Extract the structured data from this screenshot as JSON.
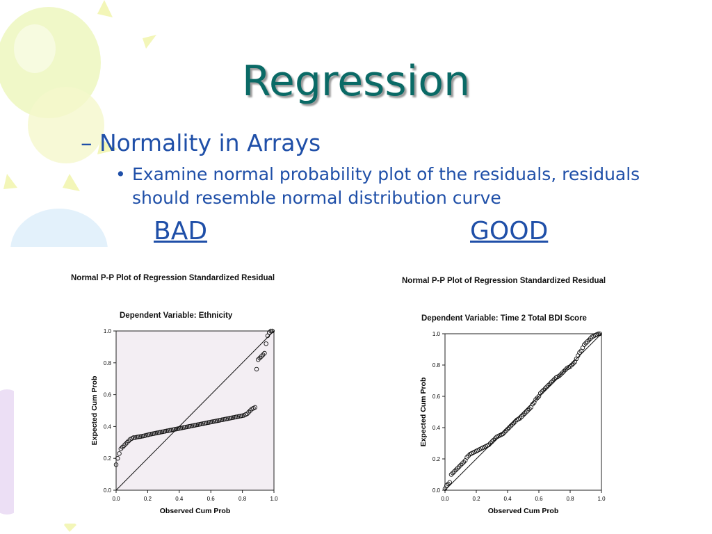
{
  "slide": {
    "title": "Regression",
    "subheading": "– Normality in Arrays",
    "bullet_marker": "•",
    "bullet_text": "Examine normal probability plot of the residuals, residuals should resemble normal distribution curve",
    "label_left": "BAD",
    "label_right": "GOOD",
    "title_color": "#0a6a66",
    "text_color": "#1f4fa8"
  },
  "chart_data": [
    {
      "type": "scatter",
      "title": "Normal P-P Plot of Regression Standardized Residual",
      "subtitle": "Dependent Variable: Ethnicity",
      "xlabel": "Observed Cum Prob",
      "ylabel": "Expected Cum Prob",
      "xlim": [
        0,
        1
      ],
      "ylim": [
        0,
        1
      ],
      "xticks": [
        "0.0",
        "0.2",
        "0.4",
        "0.6",
        "0.8",
        "1.0"
      ],
      "yticks": [
        "0.0",
        "0.2",
        "0.4",
        "0.6",
        "0.8",
        "1.0"
      ],
      "reference_line": true,
      "background": "#f3eef3",
      "points": [
        [
          0.0,
          0.16
        ],
        [
          0.01,
          0.2
        ],
        [
          0.02,
          0.23
        ],
        [
          0.03,
          0.26
        ],
        [
          0.04,
          0.27
        ],
        [
          0.05,
          0.28
        ],
        [
          0.06,
          0.29
        ],
        [
          0.07,
          0.3
        ],
        [
          0.08,
          0.31
        ],
        [
          0.09,
          0.32
        ],
        [
          0.1,
          0.325
        ],
        [
          0.11,
          0.33
        ],
        [
          0.12,
          0.33
        ],
        [
          0.13,
          0.333
        ],
        [
          0.14,
          0.335
        ],
        [
          0.15,
          0.336
        ],
        [
          0.16,
          0.338
        ],
        [
          0.17,
          0.34
        ],
        [
          0.18,
          0.342
        ],
        [
          0.19,
          0.345
        ],
        [
          0.2,
          0.347
        ],
        [
          0.21,
          0.35
        ],
        [
          0.22,
          0.352
        ],
        [
          0.23,
          0.354
        ],
        [
          0.24,
          0.356
        ],
        [
          0.25,
          0.358
        ],
        [
          0.26,
          0.36
        ],
        [
          0.27,
          0.362
        ],
        [
          0.28,
          0.364
        ],
        [
          0.29,
          0.366
        ],
        [
          0.3,
          0.368
        ],
        [
          0.31,
          0.37
        ],
        [
          0.32,
          0.372
        ],
        [
          0.33,
          0.374
        ],
        [
          0.34,
          0.376
        ],
        [
          0.35,
          0.378
        ],
        [
          0.36,
          0.38
        ],
        [
          0.37,
          0.382
        ],
        [
          0.38,
          0.384
        ],
        [
          0.39,
          0.386
        ],
        [
          0.4,
          0.388
        ],
        [
          0.41,
          0.39
        ],
        [
          0.42,
          0.392
        ],
        [
          0.43,
          0.394
        ],
        [
          0.44,
          0.396
        ],
        [
          0.45,
          0.398
        ],
        [
          0.46,
          0.4
        ],
        [
          0.47,
          0.402
        ],
        [
          0.48,
          0.404
        ],
        [
          0.49,
          0.406
        ],
        [
          0.5,
          0.408
        ],
        [
          0.51,
          0.41
        ],
        [
          0.52,
          0.412
        ],
        [
          0.53,
          0.414
        ],
        [
          0.54,
          0.416
        ],
        [
          0.55,
          0.418
        ],
        [
          0.56,
          0.42
        ],
        [
          0.57,
          0.422
        ],
        [
          0.58,
          0.424
        ],
        [
          0.59,
          0.426
        ],
        [
          0.6,
          0.428
        ],
        [
          0.61,
          0.43
        ],
        [
          0.62,
          0.432
        ],
        [
          0.63,
          0.434
        ],
        [
          0.64,
          0.436
        ],
        [
          0.65,
          0.438
        ],
        [
          0.66,
          0.44
        ],
        [
          0.67,
          0.442
        ],
        [
          0.68,
          0.444
        ],
        [
          0.69,
          0.446
        ],
        [
          0.7,
          0.448
        ],
        [
          0.71,
          0.45
        ],
        [
          0.72,
          0.452
        ],
        [
          0.73,
          0.454
        ],
        [
          0.74,
          0.456
        ],
        [
          0.75,
          0.458
        ],
        [
          0.76,
          0.46
        ],
        [
          0.77,
          0.462
        ],
        [
          0.78,
          0.464
        ],
        [
          0.79,
          0.466
        ],
        [
          0.8,
          0.468
        ],
        [
          0.81,
          0.47
        ],
        [
          0.82,
          0.475
        ],
        [
          0.83,
          0.48
        ],
        [
          0.84,
          0.49
        ],
        [
          0.85,
          0.5
        ],
        [
          0.86,
          0.51
        ],
        [
          0.87,
          0.515
        ],
        [
          0.88,
          0.52
        ],
        [
          0.89,
          0.76
        ],
        [
          0.9,
          0.82
        ],
        [
          0.91,
          0.83
        ],
        [
          0.92,
          0.84
        ],
        [
          0.93,
          0.85
        ],
        [
          0.94,
          0.86
        ],
        [
          0.95,
          0.92
        ],
        [
          0.96,
          0.97
        ],
        [
          0.97,
          0.99
        ],
        [
          0.98,
          1.0
        ],
        [
          0.99,
          1.0
        ]
      ]
    },
    {
      "type": "scatter",
      "title": "Normal P-P Plot of Regression Standardized Residual",
      "subtitle": "Dependent Variable: Time 2 Total BDI Score",
      "xlabel": "Observed Cum Prob",
      "ylabel": "Expected Cum Prob",
      "xlim": [
        0,
        1
      ],
      "ylim": [
        0,
        1
      ],
      "xticks": [
        "0.0",
        "0.2",
        "0.4",
        "0.6",
        "0.8",
        "1.0"
      ],
      "yticks": [
        "0.0",
        "0.2",
        "0.4",
        "0.6",
        "0.8",
        "1.0"
      ],
      "reference_line": true,
      "background": "#ffffff",
      "points": [
        [
          0.0,
          0.01
        ],
        [
          0.01,
          0.03
        ],
        [
          0.02,
          0.04
        ],
        [
          0.03,
          0.05
        ],
        [
          0.04,
          0.1
        ],
        [
          0.05,
          0.11
        ],
        [
          0.06,
          0.12
        ],
        [
          0.07,
          0.13
        ],
        [
          0.08,
          0.14
        ],
        [
          0.09,
          0.15
        ],
        [
          0.1,
          0.16
        ],
        [
          0.11,
          0.17
        ],
        [
          0.12,
          0.18
        ],
        [
          0.13,
          0.19
        ],
        [
          0.14,
          0.21
        ],
        [
          0.15,
          0.22
        ],
        [
          0.16,
          0.23
        ],
        [
          0.17,
          0.235
        ],
        [
          0.18,
          0.24
        ],
        [
          0.19,
          0.245
        ],
        [
          0.2,
          0.25
        ],
        [
          0.21,
          0.255
        ],
        [
          0.22,
          0.26
        ],
        [
          0.23,
          0.265
        ],
        [
          0.24,
          0.27
        ],
        [
          0.25,
          0.275
        ],
        [
          0.26,
          0.28
        ],
        [
          0.27,
          0.285
        ],
        [
          0.28,
          0.29
        ],
        [
          0.29,
          0.3
        ],
        [
          0.3,
          0.31
        ],
        [
          0.31,
          0.32
        ],
        [
          0.32,
          0.33
        ],
        [
          0.33,
          0.34
        ],
        [
          0.34,
          0.345
        ],
        [
          0.35,
          0.35
        ],
        [
          0.36,
          0.355
        ],
        [
          0.37,
          0.36
        ],
        [
          0.38,
          0.37
        ],
        [
          0.39,
          0.38
        ],
        [
          0.4,
          0.39
        ],
        [
          0.41,
          0.4
        ],
        [
          0.42,
          0.41
        ],
        [
          0.43,
          0.42
        ],
        [
          0.44,
          0.43
        ],
        [
          0.45,
          0.44
        ],
        [
          0.46,
          0.45
        ],
        [
          0.47,
          0.455
        ],
        [
          0.48,
          0.46
        ],
        [
          0.49,
          0.47
        ],
        [
          0.5,
          0.48
        ],
        [
          0.51,
          0.49
        ],
        [
          0.52,
          0.5
        ],
        [
          0.53,
          0.51
        ],
        [
          0.54,
          0.52
        ],
        [
          0.55,
          0.53
        ],
        [
          0.56,
          0.55
        ],
        [
          0.57,
          0.56
        ],
        [
          0.58,
          0.58
        ],
        [
          0.59,
          0.59
        ],
        [
          0.6,
          0.6
        ],
        [
          0.61,
          0.62
        ],
        [
          0.62,
          0.63
        ],
        [
          0.63,
          0.64
        ],
        [
          0.64,
          0.65
        ],
        [
          0.65,
          0.66
        ],
        [
          0.66,
          0.67
        ],
        [
          0.67,
          0.68
        ],
        [
          0.68,
          0.69
        ],
        [
          0.69,
          0.7
        ],
        [
          0.7,
          0.71
        ],
        [
          0.71,
          0.72
        ],
        [
          0.72,
          0.725
        ],
        [
          0.73,
          0.73
        ],
        [
          0.74,
          0.74
        ],
        [
          0.75,
          0.75
        ],
        [
          0.76,
          0.76
        ],
        [
          0.77,
          0.77
        ],
        [
          0.78,
          0.78
        ],
        [
          0.79,
          0.785
        ],
        [
          0.8,
          0.79
        ],
        [
          0.81,
          0.8
        ],
        [
          0.82,
          0.81
        ],
        [
          0.83,
          0.82
        ],
        [
          0.84,
          0.84
        ],
        [
          0.85,
          0.86
        ],
        [
          0.86,
          0.88
        ],
        [
          0.87,
          0.89
        ],
        [
          0.88,
          0.91
        ],
        [
          0.89,
          0.93
        ],
        [
          0.9,
          0.94
        ],
        [
          0.91,
          0.95
        ],
        [
          0.92,
          0.96
        ],
        [
          0.93,
          0.97
        ],
        [
          0.94,
          0.98
        ],
        [
          0.95,
          0.985
        ],
        [
          0.96,
          0.99
        ],
        [
          0.97,
          0.995
        ],
        [
          0.98,
          1.0
        ],
        [
          0.99,
          1.0
        ]
      ]
    }
  ]
}
